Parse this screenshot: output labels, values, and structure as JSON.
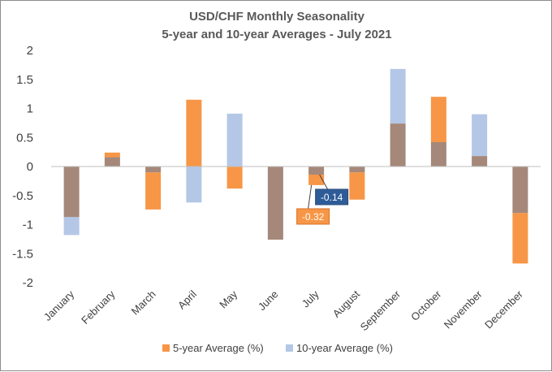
{
  "chart_data": {
    "type": "bar",
    "title": "USD/CHF Monthly  Seasonality",
    "subtitle": "5-year and 10-year Averages - July 2021",
    "categories": [
      "January",
      "February",
      "March",
      "April",
      "May",
      "June",
      "July",
      "August",
      "September",
      "October",
      "November",
      "December"
    ],
    "series": [
      {
        "name": "5-year Average (%)",
        "color": "#F79646",
        "values": [
          -0.87,
          0.24,
          -0.74,
          1.15,
          -0.38,
          -1.26,
          -0.32,
          -0.57,
          0.74,
          1.2,
          0.18,
          -1.67
        ]
      },
      {
        "name": "10-year Average (%)",
        "color": "#B4C7E7",
        "values": [
          -1.18,
          0.16,
          -0.1,
          -0.62,
          0.91,
          -1.26,
          -0.14,
          -0.1,
          1.68,
          0.42,
          0.9,
          -0.8
        ]
      }
    ],
    "overlap_color": "#A5887A",
    "ylim": [
      -2,
      2
    ],
    "yticks": [
      "2",
      "1.5",
      "1",
      "0.5",
      "0",
      "-0.5",
      "-1",
      "-1.5",
      "-2"
    ],
    "ytick_values": [
      2,
      1.5,
      1,
      0.5,
      0,
      -0.5,
      -1,
      -1.5,
      -2
    ],
    "legend_position": "bottom",
    "annotations": [
      {
        "text": "-0.14",
        "series": "10-year Average (%)",
        "category": "July",
        "color": "#2E5C99"
      },
      {
        "text": "-0.32",
        "series": "5-year Average (%)",
        "category": "July",
        "color": "#F79646"
      }
    ]
  }
}
